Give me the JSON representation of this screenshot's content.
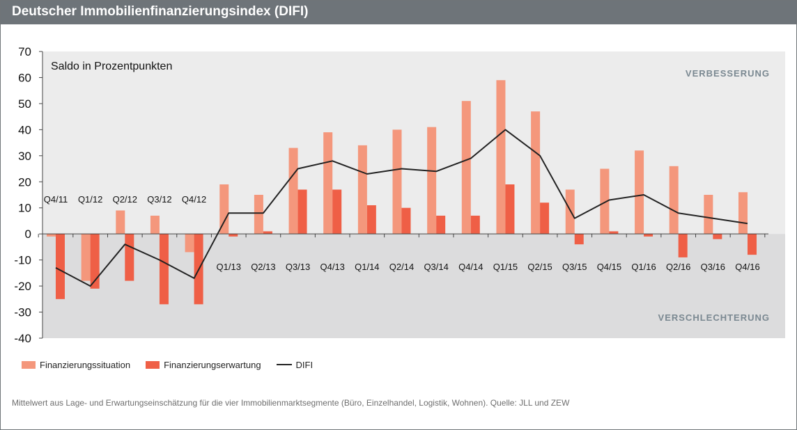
{
  "title": "Deutscher Immobilienfinanzierungsindex (DIFI)",
  "chart_data": {
    "type": "bar",
    "categories": [
      "Q4/11",
      "Q1/12",
      "Q2/12",
      "Q3/12",
      "Q4/12",
      "Q1/13",
      "Q2/13",
      "Q3/13",
      "Q4/13",
      "Q1/14",
      "Q2/14",
      "Q3/14",
      "Q4/14",
      "Q1/15",
      "Q2/15",
      "Q3/15",
      "Q4/15",
      "Q1/16",
      "Q2/16",
      "Q3/16",
      "Q4/16"
    ],
    "series": [
      {
        "name": "Finanzierungssituation",
        "kind": "bar",
        "color": "#f4977c",
        "values": [
          -1,
          -18,
          9,
          7,
          -7,
          19,
          15,
          33,
          39,
          34,
          40,
          41,
          51,
          59,
          47,
          17,
          25,
          32,
          26,
          15,
          16
        ]
      },
      {
        "name": "Finanzierungserwartung",
        "kind": "bar",
        "color": "#ef5f46",
        "values": [
          -25,
          -21,
          -18,
          -27,
          -27,
          -1,
          1,
          17,
          17,
          11,
          10,
          7,
          7,
          19,
          12,
          -4,
          1,
          -1,
          -9,
          -2,
          -8
        ]
      },
      {
        "name": "DIFI",
        "kind": "line",
        "color": "#222222",
        "values": [
          -13,
          -20,
          -4,
          -10,
          -17,
          8,
          8,
          25,
          28,
          23,
          25,
          24,
          29,
          40,
          30,
          6,
          13,
          15,
          8,
          6,
          4
        ]
      }
    ],
    "ylim": [
      -40,
      70
    ],
    "yticks": [
      70,
      60,
      50,
      40,
      30,
      20,
      10,
      0,
      -10,
      -20,
      -30,
      -40
    ],
    "ylabel": "Saldo in Prozentpunkten",
    "annotations": [
      "VERBESSERUNG",
      "VERSCHLECHTERUNG"
    ],
    "legend_position": "bottom-left",
    "zone_colors": {
      "positive": "#ececec",
      "negative": "#dcdcdd"
    }
  },
  "legend": {
    "items": [
      "Finanzierungssituation",
      "Finanzierungserwartung",
      "DIFI"
    ]
  },
  "footnote": "Mittelwert aus Lage- und Erwartungseinschätzung für die vier Immobilienmarktsegmente (Büro, Einzelhandel, Logistik, Wohnen). Quelle: JLL und ZEW"
}
